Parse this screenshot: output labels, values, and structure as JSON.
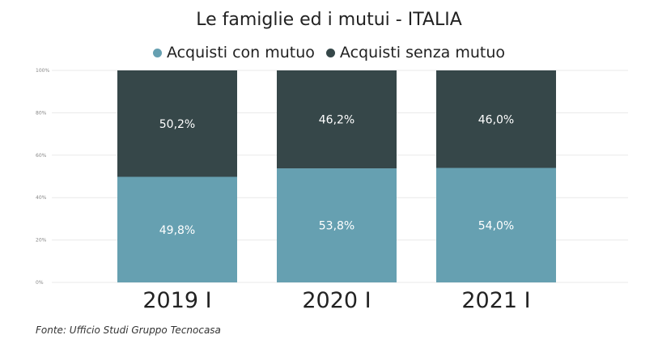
{
  "chart_data": {
    "type": "bar",
    "stacked": true,
    "title": "Le famiglie ed i mutui - ITALIA",
    "categories": [
      "2019 I",
      "2020 I",
      "2021 I"
    ],
    "series": [
      {
        "name": "Acquisti con mutuo",
        "values": [
          49.8,
          53.8,
          54.0
        ],
        "labels": [
          "49,8%",
          "53,8%",
          "54,0%"
        ],
        "color": "#66a0b1"
      },
      {
        "name": "Acquisti senza mutuo",
        "values": [
          50.2,
          46.2,
          46.0
        ],
        "labels": [
          "50,2%",
          "46,2%",
          "46,0%"
        ],
        "color": "#364749"
      }
    ],
    "ylim": [
      0,
      100
    ],
    "yticks": [
      "0%",
      "20%",
      "40%",
      "60%",
      "80%",
      "100%"
    ],
    "grid": true,
    "legend": "top"
  },
  "source": "Fonte: Ufficio Studi Gruppo Tecnocasa"
}
